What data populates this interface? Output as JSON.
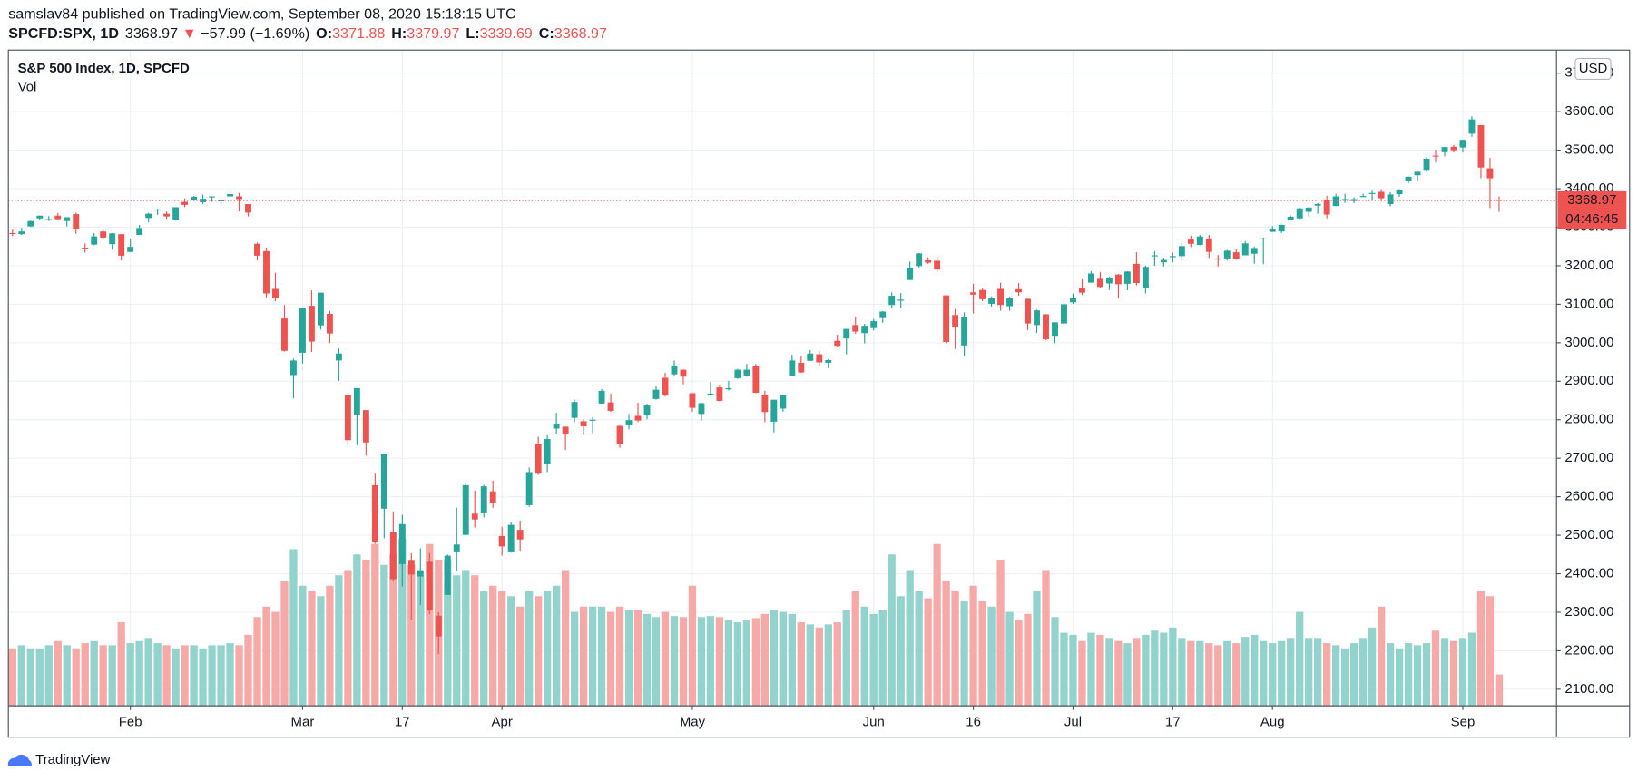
{
  "header": {
    "published": "samslav84 published on TradingView.com, September 08, 2020 15:18:15 UTC",
    "symbol": "SPCFD:SPX, 1D",
    "last": "3368.97",
    "arrow": "▼",
    "change": "−57.99 (−1.69%)",
    "ohlc": [
      {
        "label": "O:",
        "value": "3371.88"
      },
      {
        "label": "H:",
        "value": "3379.97"
      },
      {
        "label": "L:",
        "value": "3339.69"
      },
      {
        "label": "C:",
        "value": "3368.97"
      }
    ]
  },
  "chart_data": {
    "type": "candlestick",
    "legend": "S&P 500 Index, 1D, SPCFD",
    "volume_legend": "Vol",
    "currency": "USD",
    "last_price": 3368.97,
    "last_price_label": "3368.97",
    "countdown": "04:46:45",
    "up_color": "#26a69a",
    "down_color": "#ef5350",
    "volume_up_color": "#92d3cd",
    "volume_down_color": "#f7a9a7",
    "grid": true,
    "ylim": [
      2057,
      3760
    ],
    "yticks": [
      {
        "value": 2100,
        "label": "2100.00"
      },
      {
        "value": 2200,
        "label": "2200.00"
      },
      {
        "value": 2300,
        "label": "2300.00"
      },
      {
        "value": 2400,
        "label": "2400.00"
      },
      {
        "value": 2500,
        "label": "2500.00"
      },
      {
        "value": 2600,
        "label": "2600.00"
      },
      {
        "value": 2700,
        "label": "2700.00"
      },
      {
        "value": 2800,
        "label": "2800.00"
      },
      {
        "value": 2900,
        "label": "2900.00"
      },
      {
        "value": 3000,
        "label": "3000.00"
      },
      {
        "value": 3100,
        "label": "3100.00"
      },
      {
        "value": 3200,
        "label": "3200.00"
      },
      {
        "value": 3300,
        "label": "3300.00"
      },
      {
        "value": 3400,
        "label": "3400.00"
      },
      {
        "value": 3500,
        "label": "3500.00"
      },
      {
        "value": 3600,
        "label": "3600.00"
      },
      {
        "value": 3700,
        "label": "3700.00"
      }
    ],
    "xticks": [
      {
        "value": 13,
        "label": "Feb"
      },
      {
        "value": 32,
        "label": "Mar"
      },
      {
        "value": 43,
        "label": "17"
      },
      {
        "value": 54,
        "label": "Apr"
      },
      {
        "value": 75,
        "label": "May"
      },
      {
        "value": 95,
        "label": "Jun"
      },
      {
        "value": 106,
        "label": "16"
      },
      {
        "value": 117,
        "label": "Jul"
      },
      {
        "value": 128,
        "label": "17"
      },
      {
        "value": 139,
        "label": "Aug"
      },
      {
        "value": 160,
        "label": "Sep"
      }
    ],
    "open": [
      3285,
      3282,
      3302,
      3323,
      3321,
      3330,
      3316,
      3334,
      3247,
      3255,
      3289,
      3256,
      3282,
      3236,
      3280,
      3324,
      3344,
      3335,
      3318,
      3366,
      3370,
      3365,
      3378,
      3369,
      3380,
      3380,
      3360,
      3257,
      3238,
      3140,
      3063,
      2916,
      2974,
      3096,
      3045,
      3075,
      2954,
      2863,
      2813,
      2825,
      2630,
      2569,
      2508,
      2425,
      2436,
      2393,
      2431,
      2291,
      2345,
      2458,
      2501,
      2556,
      2558,
      2614,
      2498,
      2458,
      2514,
      2578,
      2738,
      2686,
      2777,
      2782,
      2805,
      2796,
      2799,
      2842,
      2845,
      2784,
      2787,
      2810,
      2812,
      2854,
      2909,
      2918,
      2930,
      2869,
      2815,
      2868,
      2884,
      2879,
      2908,
      2915,
      2939,
      2865,
      2795,
      2829,
      2913,
      2948,
      2953,
      2970,
      2948,
      3005,
      3011,
      3046,
      3025,
      3038,
      3064,
      3098,
      3112,
      3163,
      3199,
      3214,
      3213,
      3123,
      3072,
      2993,
      3131,
      3137,
      3101,
      3140,
      3095,
      3139,
      3114,
      3046,
      3074,
      3018,
      3050,
      3105,
      3143,
      3156,
      3166,
      3154,
      3177,
      3153,
      3205,
      3141,
      3225,
      3209,
      3224,
      3225,
      3268,
      3254,
      3271,
      3219,
      3219,
      3235,
      3227,
      3231,
      3270,
      3288,
      3289,
      3318,
      3323,
      3340,
      3356,
      3370,
      3355,
      3372,
      3368,
      3380,
      3387,
      3392,
      3360,
      3386,
      3419,
      3435,
      3449,
      3486,
      3495,
      3509,
      3507,
      3543,
      3565,
      3453,
      3371.88
    ],
    "high": [
      3294,
      3298,
      3317,
      3330,
      3329,
      3337,
      3326,
      3338,
      3258,
      3285,
      3293,
      3285,
      3282,
      3268,
      3306,
      3337,
      3348,
      3341,
      3352,
      3375,
      3381,
      3385,
      3380,
      3375,
      3393,
      3389,
      3360,
      3260,
      3247,
      3182,
      3098,
      2959,
      3090,
      3136,
      3130,
      3083,
      2985,
      2863,
      2882,
      2825,
      2660,
      2711,
      2562,
      2553,
      2453,
      2466,
      2454,
      2300,
      2450,
      2572,
      2637,
      2616,
      2631,
      2642,
      2522,
      2534,
      2538,
      2676,
      2756,
      2760,
      2818,
      2782,
      2852,
      2801,
      2807,
      2880,
      2868,
      2785,
      2815,
      2844,
      2842,
      2887,
      2922,
      2954,
      2930,
      2869,
      2844,
      2898,
      2891,
      2901,
      2932,
      2945,
      2945,
      2875,
      2852,
      2865,
      2969,
      2965,
      2981,
      2978,
      2957,
      3021,
      3036,
      3068,
      3049,
      3062,
      3082,
      3131,
      3129,
      3211,
      3233,
      3222,
      3223,
      3123,
      3088,
      3079,
      3153,
      3141,
      3120,
      3156,
      3120,
      3155,
      3115,
      3086,
      3074,
      3053,
      3112,
      3128,
      3165,
      3186,
      3184,
      3172,
      3179,
      3186,
      3235,
      3200,
      3238,
      3221,
      3234,
      3259,
      3278,
      3280,
      3280,
      3228,
      3241,
      3244,
      3264,
      3250,
      3273,
      3303,
      3307,
      3331,
      3351,
      3352,
      3363,
      3382,
      3387,
      3387,
      3378,
      3387,
      3395,
      3399,
      3391,
      3399,
      3432,
      3444,
      3481,
      3501,
      3509,
      3514,
      3528,
      3588,
      3565,
      3480,
      3379.97
    ],
    "low": [
      3277,
      3280,
      3301,
      3318,
      3316,
      3320,
      3302,
      3283,
      3234,
      3253,
      3271,
      3242,
      3214,
      3235,
      3280,
      3313,
      3332,
      3322,
      3317,
      3352,
      3369,
      3360,
      3366,
      3355,
      3378,
      3341,
      3328,
      3214,
      3118,
      3108,
      2977,
      2856,
      2946,
      2976,
      3034,
      2999,
      2901,
      2734,
      2734,
      2707,
      2478,
      2492,
      2380,
      2367,
      2281,
      2319,
      2295,
      2192,
      2345,
      2407,
      2501,
      2520,
      2546,
      2571,
      2447,
      2455,
      2460,
      2574,
      2657,
      2664,
      2762,
      2721,
      2794,
      2761,
      2765,
      2842,
      2820,
      2727,
      2775,
      2794,
      2801,
      2852,
      2860,
      2912,
      2892,
      2821,
      2798,
      2863,
      2848,
      2876,
      2906,
      2912,
      2869,
      2794,
      2767,
      2821,
      2913,
      2922,
      2953,
      2939,
      2934,
      2988,
      2970,
      3023,
      2998,
      3032,
      3052,
      3090,
      3090,
      3163,
      3196,
      3205,
      3184,
      2999,
      2984,
      2966,
      3076,
      3108,
      3094,
      3083,
      3083,
      3122,
      3033,
      3025,
      3007,
      2999,
      3047,
      3101,
      3124,
      3156,
      3142,
      3137,
      3115,
      3136,
      3149,
      3128,
      3200,
      3198,
      3209,
      3215,
      3248,
      3253,
      3220,
      3198,
      3214,
      3216,
      3227,
      3205,
      3204,
      3288,
      3285,
      3318,
      3318,
      3328,
      3335,
      3323,
      3355,
      3363,
      3362,
      3379,
      3370,
      3369,
      3354,
      3379,
      3414,
      3421,
      3444,
      3468,
      3484,
      3494,
      3494,
      3535,
      3427,
      3350,
      3339.69
    ],
    "close": [
      3283,
      3289,
      3316,
      3330,
      3321,
      3321,
      3326,
      3295,
      3244,
      3276,
      3273,
      3284,
      3226,
      3249,
      3298,
      3335,
      3346,
      3328,
      3352,
      3358,
      3379,
      3374,
      3380,
      3370,
      3386,
      3373,
      3338,
      3226,
      3128,
      3116,
      2979,
      2954,
      3090,
      3003,
      3130,
      3024,
      2972,
      2747,
      2882,
      2741,
      2481,
      2711,
      2386,
      2529,
      2398,
      2409,
      2305,
      2237,
      2447,
      2476,
      2630,
      2541,
      2627,
      2585,
      2471,
      2527,
      2489,
      2664,
      2660,
      2750,
      2790,
      2762,
      2846,
      2783,
      2800,
      2875,
      2823,
      2737,
      2799,
      2798,
      2837,
      2878,
      2863,
      2940,
      2912,
      2831,
      2843,
      2868,
      2849,
      2882,
      2930,
      2930,
      2870,
      2820,
      2852,
      2864,
      2954,
      2923,
      2972,
      2949,
      2955,
      2992,
      3036,
      3029,
      3044,
      3056,
      3081,
      3122,
      3112,
      3194,
      3232,
      3208,
      3190,
      3002,
      3041,
      3067,
      3125,
      3113,
      3115,
      3098,
      3117,
      3131,
      3050,
      3084,
      3009,
      3053,
      3100,
      3116,
      3130,
      3180,
      3145,
      3169,
      3152,
      3185,
      3155,
      3197,
      3227,
      3215,
      3225,
      3251,
      3257,
      3276,
      3236,
      3216,
      3239,
      3218,
      3258,
      3246,
      3271,
      3294,
      3306,
      3327,
      3349,
      3351,
      3360,
      3333,
      3380,
      3373,
      3373,
      3381,
      3389,
      3375,
      3385,
      3397,
      3431,
      3444,
      3478,
      3484,
      3508,
      3500,
      3527,
      3580,
      3455,
      3427,
      3368.97
    ],
    "volume": [
      55,
      58,
      55,
      55,
      58,
      62,
      58,
      55,
      60,
      62,
      58,
      58,
      80,
      60,
      62,
      65,
      60,
      58,
      55,
      58,
      58,
      55,
      58,
      58,
      60,
      58,
      68,
      85,
      95,
      90,
      120,
      150,
      115,
      110,
      105,
      115,
      125,
      130,
      145,
      140,
      155,
      135,
      145,
      160,
      135,
      125,
      155,
      140,
      140,
      125,
      130,
      125,
      110,
      115,
      110,
      105,
      95,
      110,
      105,
      110,
      115,
      130,
      90,
      95,
      95,
      95,
      90,
      95,
      92,
      92,
      88,
      85,
      90,
      86,
      85,
      115,
      85,
      86,
      85,
      82,
      80,
      82,
      84,
      88,
      92,
      90,
      88,
      80,
      78,
      75,
      78,
      80,
      92,
      110,
      95,
      88,
      92,
      145,
      105,
      130,
      110,
      103,
      155,
      120,
      110,
      100,
      115,
      100,
      95,
      140,
      90,
      82,
      88,
      110,
      130,
      85,
      70,
      68,
      62,
      70,
      68,
      65,
      62,
      60,
      65,
      68,
      72,
      70,
      75,
      65,
      62,
      62,
      60,
      58,
      62,
      60,
      66,
      68,
      62,
      60,
      62,
      65,
      90,
      65,
      65,
      60,
      58,
      55,
      60,
      65,
      75,
      95,
      60,
      55,
      60,
      58,
      60,
      72,
      65,
      62,
      65,
      70,
      110,
      105,
      30
    ]
  },
  "footer": {
    "brand": "TradingView"
  }
}
